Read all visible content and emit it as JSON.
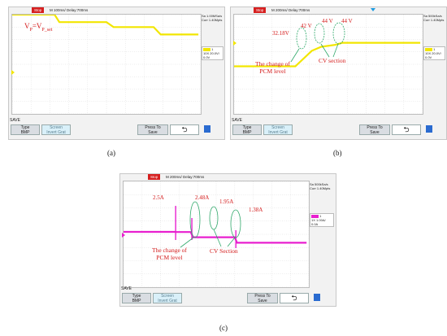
{
  "panels": [
    {
      "id": "a",
      "caption": "(a)",
      "status": "Stop",
      "timebase": "M 100ms/ Delay:700ms",
      "sample_rate": "Sa 1.00MSa/s",
      "memory": "Curr 1.40Mpts",
      "channel_num": "1",
      "channel_scale": "10X",
      "channel_volt": "20.0V/",
      "channel_offset": "0.0V",
      "annotations": [
        {
          "text": "V",
          "sub": "P",
          "mid": "=V",
          "sub2": "P_set"
        }
      ],
      "callouts": []
    },
    {
      "id": "b",
      "caption": "(b)",
      "status": "Stop",
      "timebase": "M 200ms/ Delay:700ms",
      "sample_rate": "Sa 500kSa/s",
      "memory": "Curr 1.40Mpts",
      "channel_num": "1",
      "channel_scale": "10X",
      "channel_volt": "20.0V/",
      "channel_offset": "0.0V",
      "annotations": [
        "32.18V",
        "42 V",
        "44 V",
        "44 V"
      ],
      "callouts": [
        "The change of",
        "PCM level",
        "CV section"
      ]
    },
    {
      "id": "c",
      "caption": "(c)",
      "status": "Stop",
      "timebase": "M 200ms/ Delay:700ms",
      "sample_rate": "Sa 500kSa/s",
      "memory": "Curr 1.40Mpts",
      "channel_num": "1",
      "channel_scale": "1X",
      "channel_volt": "1.00A/",
      "channel_offset": "0.0A",
      "annotations": [
        "2.5A",
        "2.48A",
        "1.95A",
        "1.38A"
      ],
      "callouts": [
        "The change of",
        "PCM level",
        "CV Section"
      ]
    }
  ],
  "softkeys": {
    "save": "SAVE",
    "type_label": "Type",
    "type_value": "BMP",
    "screen_label": "Screen",
    "screen_value": "Invert Grat",
    "press_label": "Press To",
    "press_value": "Save"
  },
  "colors": {
    "voltage_trace": "#f2e600",
    "current_trace": "#e81fcf",
    "annotation": "#d41a1a",
    "callout_ellipse": "#2fa86a",
    "stop_badge": "#d61f1f",
    "trigger_marker": "#1e9be0"
  },
  "chart_data": [
    {
      "type": "line",
      "panel": "a",
      "series": [
        {
          "values": [
            4.0,
            4.0,
            3.4,
            3.4,
            3.0,
            3.0,
            2.4,
            2.4
          ]
        }
      ],
      "x": [
        0,
        1.8,
        2.0,
        4.0,
        4.3,
        6.0,
        6.3,
        7.9
      ]
    },
    {
      "type": "line",
      "panel": "b",
      "series": [
        {
          "values": [
            32.18,
            32.18,
            40,
            42,
            43,
            44,
            44,
            44,
            44
          ]
        }
      ],
      "x": [
        0,
        2.6,
        3.3,
        3.7,
        4.3,
        4.6,
        5.3,
        6.0,
        7.9
      ]
    },
    {
      "type": "line",
      "panel": "c",
      "series": [
        {
          "values": [
            2.5,
            2.5,
            2.48,
            2.48,
            1.95,
            1.95,
            1.38,
            1.38
          ]
        }
      ],
      "x": [
        0,
        2.2,
        2.3,
        2.9,
        3.0,
        4.8,
        4.9,
        7.9
      ]
    }
  ]
}
